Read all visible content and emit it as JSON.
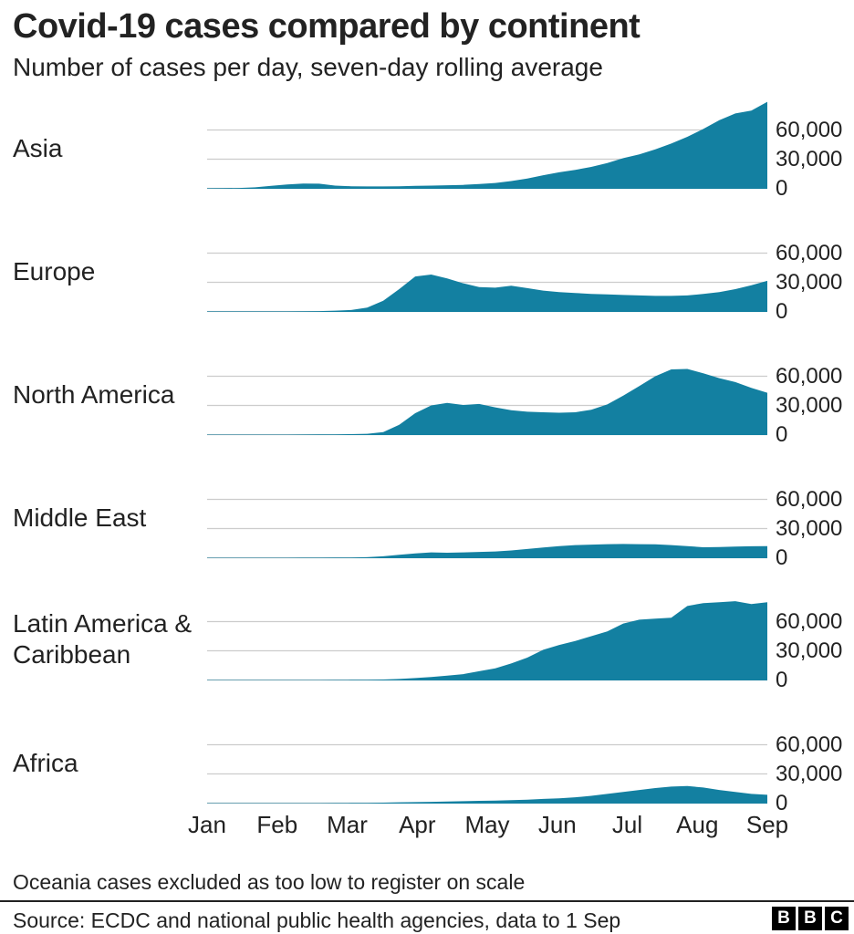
{
  "title": "Covid-19 cases compared by continent",
  "subtitle": "Number of cases per day, seven-day rolling average",
  "footnote": "Oceania cases excluded as too low to register on scale",
  "source": "Source: ECDC and national public health agencies, data to 1 Sep",
  "logo": {
    "name": "BBC",
    "letters": [
      "B",
      "B",
      "C"
    ]
  },
  "colors": {
    "area": "#1380A1",
    "grid": "#cccccc",
    "text": "#222222",
    "divider": "#222222"
  },
  "axis": {
    "months": [
      "Jan",
      "Feb",
      "Mar",
      "Apr",
      "May",
      "Jun",
      "Jul",
      "Aug",
      "Sep"
    ],
    "ytick_labels": [
      "60,000",
      "30,000",
      "0"
    ],
    "ytick_values": [
      60000,
      30000,
      0
    ]
  },
  "chart_data": {
    "type": "area",
    "title": "Covid-19 cases compared by continent",
    "subtitle": "Number of cases per day, seven-day rolling average",
    "unit": "cases per day (seven-day rolling average)",
    "x_start": "1 Jan",
    "x_end": "1 Sep",
    "x_months": [
      "Jan",
      "Feb",
      "Mar",
      "Apr",
      "May",
      "Jun",
      "Jul",
      "Aug",
      "Sep"
    ],
    "sampling": "36 evenly spaced (weekly) samples from 1 Jan to 1 Sep",
    "y_gridlines": [
      0,
      30000,
      60000
    ],
    "y_headroom_max": 90000,
    "legend": "none (small multiples, one panel per continent)",
    "note": "Oceania cases excluded as too low to register on scale",
    "series": [
      {
        "name": "Asia",
        "values": [
          100,
          200,
          400,
          1000,
          2500,
          4000,
          5000,
          4800,
          2800,
          2200,
          2000,
          2000,
          2200,
          2500,
          2800,
          3200,
          3600,
          4500,
          5500,
          7500,
          10000,
          13500,
          16500,
          19000,
          22000,
          26000,
          31000,
          35000,
          40000,
          46000,
          53000,
          61000,
          70000,
          77000,
          80000,
          89000
        ]
      },
      {
        "name": "Europe",
        "values": [
          100,
          100,
          100,
          100,
          100,
          100,
          200,
          400,
          800,
          1500,
          4000,
          11000,
          23000,
          36000,
          38000,
          34000,
          29000,
          25000,
          24500,
          26500,
          24000,
          21500,
          20000,
          19000,
          18000,
          17500,
          17000,
          16500,
          16000,
          16000,
          16500,
          18000,
          20000,
          23000,
          27000,
          31500
        ]
      },
      {
        "name": "North America",
        "values": [
          0,
          0,
          0,
          0,
          0,
          0,
          100,
          200,
          300,
          500,
          800,
          2500,
          10000,
          22000,
          30000,
          32500,
          30500,
          31500,
          28000,
          25000,
          23500,
          23000,
          22500,
          23000,
          25500,
          31000,
          40000,
          50000,
          60000,
          67000,
          67500,
          63000,
          58000,
          54000,
          48000,
          43000
        ]
      },
      {
        "name": "Middle East",
        "values": [
          0,
          0,
          0,
          0,
          0,
          0,
          100,
          100,
          200,
          300,
          600,
          1500,
          3000,
          4500,
          5500,
          5200,
          5500,
          6000,
          6500,
          7500,
          9000,
          10500,
          12000,
          13000,
          13500,
          14000,
          14200,
          14000,
          13800,
          13000,
          12000,
          10800,
          11000,
          11500,
          11800,
          12000
        ]
      },
      {
        "name": "Latin America & Caribbean",
        "values": [
          0,
          0,
          0,
          0,
          0,
          0,
          0,
          0,
          100,
          200,
          300,
          500,
          1000,
          2000,
          3000,
          4500,
          6000,
          9000,
          12000,
          17000,
          23000,
          31000,
          36000,
          40000,
          45000,
          50000,
          58000,
          62000,
          63000,
          64000,
          76000,
          79000,
          80000,
          81000,
          78000,
          80000
        ]
      },
      {
        "name": "Africa",
        "values": [
          0,
          0,
          0,
          0,
          0,
          0,
          0,
          0,
          100,
          200,
          300,
          500,
          800,
          1000,
          1300,
          1700,
          2000,
          2300,
          2600,
          3000,
          3600,
          4300,
          5000,
          6000,
          7500,
          9500,
          11500,
          13500,
          15500,
          17000,
          17500,
          16000,
          13500,
          11500,
          9500,
          8500
        ]
      }
    ]
  }
}
